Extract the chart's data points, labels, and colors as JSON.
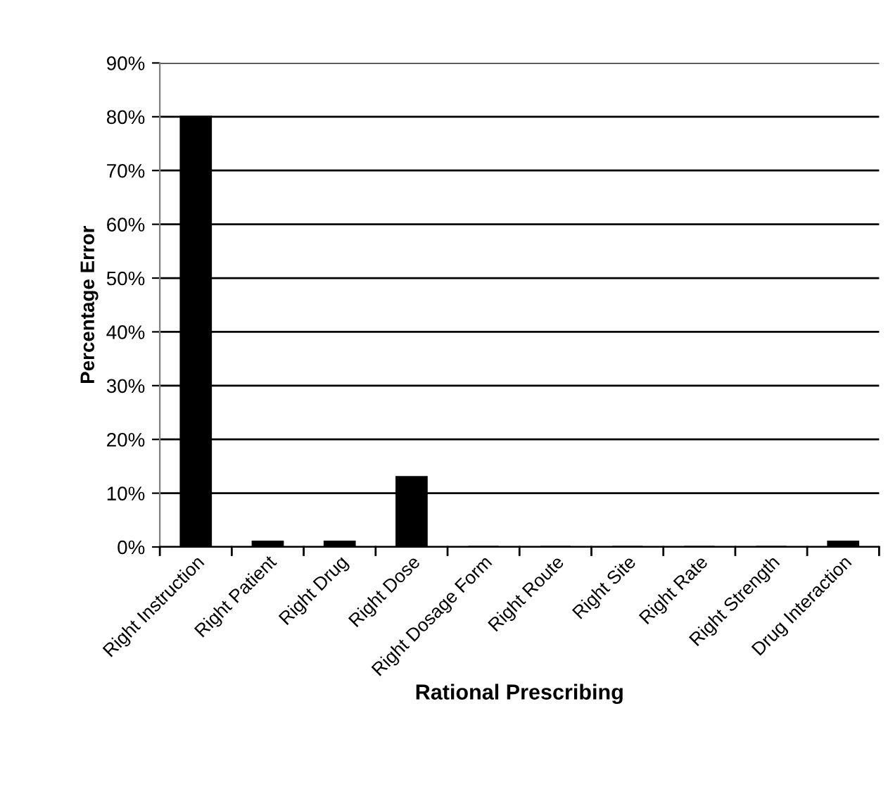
{
  "chart_data": {
    "type": "bar",
    "xlabel": "Rational Prescribing",
    "ylabel": "Percentage Error",
    "categories": [
      "Right Instruction",
      "Right Patient",
      "Right Drug",
      "Right Dose",
      "Right Dosage Form",
      "Right Route",
      "Right Site",
      "Right Rate",
      "Right Strength",
      "Drug Interaction"
    ],
    "values": [
      80,
      1,
      1,
      13,
      0,
      0,
      0,
      0,
      0,
      1
    ],
    "color": "#000000",
    "ylim": [
      0,
      90
    ],
    "yticks": [
      {
        "value": 0,
        "label": "0%"
      },
      {
        "value": 10,
        "label": "10%"
      },
      {
        "value": 20,
        "label": "20%"
      },
      {
        "value": 30,
        "label": "30%"
      },
      {
        "value": 40,
        "label": "40%"
      },
      {
        "value": 50,
        "label": "50%"
      },
      {
        "value": 60,
        "label": "60%"
      },
      {
        "value": 70,
        "label": "70%"
      },
      {
        "value": 80,
        "label": "80%"
      },
      {
        "value": 90,
        "label": "90%"
      }
    ],
    "grid": "y",
    "legend": false
  }
}
